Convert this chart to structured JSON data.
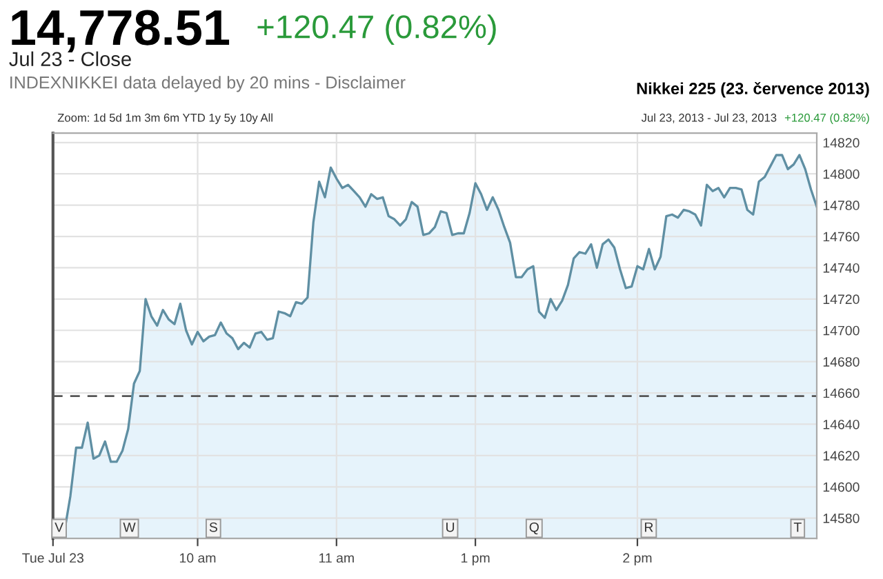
{
  "chart_data": {
    "type": "area",
    "title": "14,778.51",
    "subtitle": "+120.47 (0.82%)",
    "annotations": [
      "Jul 23 - Close",
      "INDEXNIKKEI data delayed by 20 mins - Disclaimer",
      "Nikkei 225 (23. července 2013)",
      "Zoom: 1d 5d 1m 3m 6m YTD 1y 5y 10y All",
      "Jul 23, 2013 - Jul 23, 2013",
      "+120.47 (0.82%)",
      "V",
      "W",
      "S",
      "U",
      "Q",
      "R",
      "T"
    ],
    "categories": [
      "Tue Jul 23",
      null,
      null,
      null,
      null,
      null,
      null,
      null,
      null,
      null,
      null,
      null,
      null,
      null,
      null,
      null,
      null,
      null,
      null,
      null,
      null,
      null,
      null,
      null,
      null,
      "10 am",
      null,
      null,
      null,
      null,
      null,
      null,
      null,
      null,
      null,
      null,
      null,
      null,
      null,
      null,
      null,
      null,
      null,
      null,
      null,
      null,
      null,
      null,
      null,
      "11 am",
      null,
      null,
      null,
      null,
      null,
      null,
      null,
      null,
      null,
      null,
      null,
      null,
      null,
      null,
      null,
      null,
      null,
      null,
      null,
      null,
      null,
      null,
      null,
      "1 pm",
      null,
      null,
      null,
      null,
      null,
      null,
      null,
      null,
      null,
      null,
      null,
      null,
      null,
      null,
      null,
      null,
      null,
      null,
      null,
      null,
      null,
      null,
      null,
      null,
      null,
      null,
      null,
      "2 pm",
      null,
      null,
      null,
      null,
      null,
      null,
      null,
      null,
      null,
      null,
      null,
      null,
      null,
      null,
      null,
      null,
      null,
      null,
      null,
      null,
      null,
      null,
      null,
      null,
      null,
      null,
      null,
      null,
      null,
      null,
      null
    ],
    "series": [
      {
        "color": "#5f8fa3",
        "values": [
          14571,
          14569,
          14572,
          14594,
          14625,
          14625,
          14641,
          14618,
          14620,
          14629,
          14616,
          14616,
          14623,
          14637,
          14666,
          14674,
          14720,
          14709,
          14703,
          14713,
          14707,
          14704,
          14717,
          14700,
          14691,
          14699,
          14693,
          14696,
          14697,
          14705,
          14698,
          14695,
          14688,
          14692,
          14689,
          14698,
          14699,
          14694,
          14695,
          14712,
          14711,
          14709,
          14718,
          14717,
          14721,
          14769,
          14795,
          14785,
          14804,
          14797,
          14791,
          14793,
          14789,
          14785,
          14779,
          14787,
          14784,
          14785,
          14773,
          14771,
          14767,
          14771,
          14782,
          14779,
          14761,
          14762,
          14766,
          14776,
          14775,
          14761,
          14762,
          14762,
          14775,
          14794,
          14787,
          14777,
          14785,
          14777,
          14766,
          14756,
          14734,
          14734,
          14739,
          14741,
          14712,
          14708,
          14720,
          14713,
          14719,
          14729,
          14746,
          14750,
          14749,
          14755,
          14740,
          14755,
          14758,
          14753,
          14739,
          14727,
          14728,
          14741,
          14739,
          14752,
          14739,
          14747,
          14773,
          14774,
          14772,
          14777,
          14776,
          14774,
          14767,
          14793,
          14789,
          14791,
          14785,
          14791,
          14791,
          14790,
          14777,
          14774,
          14795,
          14798,
          14805,
          14812,
          14812,
          14803,
          14806,
          14812,
          14803,
          14790,
          14779
        ]
      }
    ],
    "ylim": [
      14567,
      14826
    ],
    "yticks": [
      14580,
      14600,
      14620,
      14640,
      14660,
      14680,
      14700,
      14720,
      14740,
      14760,
      14780,
      14800,
      14820
    ],
    "ref_lines": [
      {
        "axis": "y",
        "value": 14658,
        "color": "#555555",
        "line_style": "dashed"
      }
    ],
    "grid": true
  }
}
